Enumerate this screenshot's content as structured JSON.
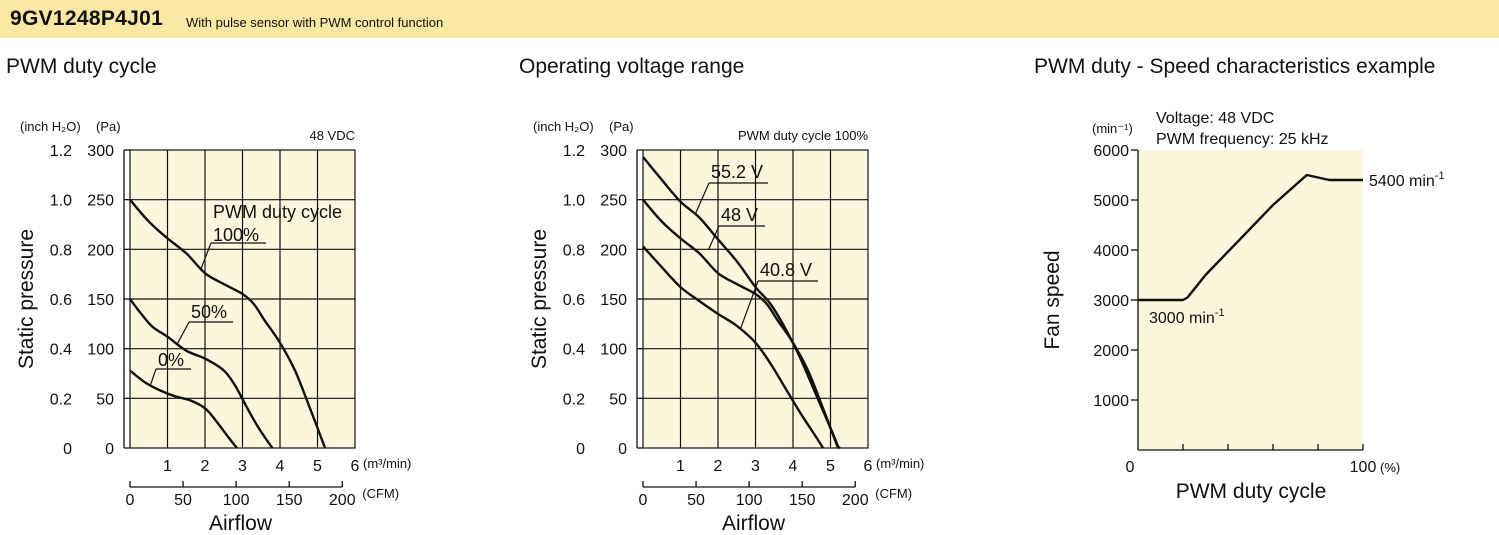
{
  "header": {
    "model": "9GV1248P4J01",
    "description": "With pulse sensor with PWM control function"
  },
  "chart_data": [
    {
      "type": "line",
      "title": "PWM duty cycle",
      "annotation": "48 VDC",
      "x": {
        "label": "Airflow",
        "unit": "(m³/min)",
        "range": [
          0,
          6
        ],
        "ticks": [
          "1",
          "2",
          "3",
          "4",
          "5",
          "6"
        ],
        "secondary": {
          "unit": "(CFM)",
          "range": [
            0,
            212
          ],
          "ticks": [
            "0",
            "50",
            "100",
            "150",
            "200"
          ]
        }
      },
      "y": {
        "label": "Static pressure",
        "unit": "(Pa)",
        "range": [
          0,
          300
        ],
        "ticks": [
          "0",
          "50",
          "100",
          "150",
          "200",
          "250",
          "300"
        ],
        "secondary": {
          "unit": "(inch H₂O)",
          "range": [
            0,
            1.2
          ],
          "ticks": [
            "0",
            "0.2",
            "0.4",
            "0.6",
            "0.8",
            "1.0",
            "1.2"
          ]
        }
      },
      "legend_title": "PWM duty cycle",
      "series": [
        {
          "name": "100%",
          "points": [
            [
              0,
              250
            ],
            [
              0.5,
              228
            ],
            [
              1,
              211
            ],
            [
              1.5,
              196
            ],
            [
              2,
              176
            ],
            [
              2.5,
              165
            ],
            [
              3,
              155
            ],
            [
              3.3,
              145
            ],
            [
              3.6,
              128
            ],
            [
              4,
              106
            ],
            [
              4.4,
              78
            ],
            [
              4.8,
              40
            ],
            [
              5.1,
              10
            ],
            [
              5.2,
              0
            ]
          ]
        },
        {
          "name": "50%",
          "points": [
            [
              0,
              150
            ],
            [
              0.3,
              135
            ],
            [
              0.6,
              122
            ],
            [
              1,
              112
            ],
            [
              1.5,
              98
            ],
            [
              2,
              90
            ],
            [
              2.5,
              78
            ],
            [
              2.8,
              63
            ],
            [
              3.1,
              42
            ],
            [
              3.4,
              22
            ],
            [
              3.7,
              5
            ],
            [
              3.8,
              0
            ]
          ]
        },
        {
          "name": "0%",
          "points": [
            [
              0,
              78
            ],
            [
              0.4,
              66
            ],
            [
              0.8,
              58
            ],
            [
              1.2,
              52
            ],
            [
              1.6,
              48
            ],
            [
              2,
              40
            ],
            [
              2.3,
              27
            ],
            [
              2.6,
              12
            ],
            [
              2.85,
              0
            ]
          ]
        }
      ]
    },
    {
      "type": "line",
      "title": "Operating voltage range",
      "annotation": "PWM duty cycle 100%",
      "x": {
        "label": "Airflow",
        "unit": "(m³/min)",
        "range": [
          0,
          6
        ],
        "ticks": [
          "1",
          "2",
          "3",
          "4",
          "5",
          "6"
        ],
        "secondary": {
          "unit": "(CFM)",
          "range": [
            0,
            212
          ],
          "ticks": [
            "0",
            "50",
            "100",
            "150",
            "200"
          ]
        }
      },
      "y": {
        "label": "Static pressure",
        "unit": "(Pa)",
        "range": [
          0,
          300
        ],
        "ticks": [
          "0",
          "50",
          "100",
          "150",
          "200",
          "250",
          "300"
        ],
        "secondary": {
          "unit": "(inch H₂O)",
          "range": [
            0,
            1.2
          ],
          "ticks": [
            "0",
            "0.2",
            "0.4",
            "0.6",
            "0.8",
            "1.0",
            "1.2"
          ]
        }
      },
      "series": [
        {
          "name": "55.2 V",
          "points": [
            [
              0,
              293
            ],
            [
              0.5,
              270
            ],
            [
              1,
              248
            ],
            [
              1.5,
              232
            ],
            [
              2,
              210
            ],
            [
              2.5,
              188
            ],
            [
              3,
              162
            ],
            [
              3.4,
              145
            ],
            [
              3.8,
              120
            ],
            [
              4.2,
              90
            ],
            [
              4.6,
              55
            ],
            [
              5,
              20
            ],
            [
              5.2,
              2
            ],
            [
              5.25,
              0
            ]
          ]
        },
        {
          "name": "48 V",
          "points": [
            [
              0,
              250
            ],
            [
              0.5,
              228
            ],
            [
              1,
              211
            ],
            [
              1.5,
              196
            ],
            [
              2,
              176
            ],
            [
              2.5,
              165
            ],
            [
              3,
              155
            ],
            [
              3.3,
              145
            ],
            [
              3.6,
              128
            ],
            [
              4,
              106
            ],
            [
              4.4,
              78
            ],
            [
              4.8,
              40
            ],
            [
              5.1,
              10
            ],
            [
              5.2,
              0
            ]
          ]
        },
        {
          "name": "40.8 V",
          "points": [
            [
              0,
              203
            ],
            [
              0.5,
              182
            ],
            [
              1,
              162
            ],
            [
              1.5,
              148
            ],
            [
              2,
              135
            ],
            [
              2.5,
              123
            ],
            [
              3,
              106
            ],
            [
              3.4,
              85
            ],
            [
              3.8,
              60
            ],
            [
              4.2,
              35
            ],
            [
              4.6,
              12
            ],
            [
              4.8,
              0
            ]
          ]
        }
      ]
    },
    {
      "type": "line",
      "title": "PWM duty - Speed characteristics example",
      "annotation_lines": [
        "Voltage: 48 VDC",
        "PWM frequency: 25 kHz"
      ],
      "x": {
        "label": "PWM duty cycle",
        "unit": "(%)",
        "range": [
          0,
          100
        ],
        "ticks": [
          "0",
          "100"
        ]
      },
      "y": {
        "label": "Fan speed",
        "unit": "(min⁻¹)",
        "range": [
          0,
          6000
        ],
        "ticks": [
          "1000",
          "2000",
          "3000",
          "4000",
          "5000",
          "6000"
        ]
      },
      "series": [
        {
          "name": "",
          "points": [
            [
              0,
              3000
            ],
            [
              20,
              3000
            ],
            [
              22,
              3050
            ],
            [
              30,
              3500
            ],
            [
              45,
              4200
            ],
            [
              60,
              4900
            ],
            [
              75,
              5500
            ],
            [
              85,
              5400
            ],
            [
              100,
              5400
            ]
          ]
        }
      ],
      "labels": [
        {
          "text": "3000 min",
          "sup": "-1"
        },
        {
          "text": "5400 min",
          "sup": "-1"
        }
      ]
    }
  ]
}
